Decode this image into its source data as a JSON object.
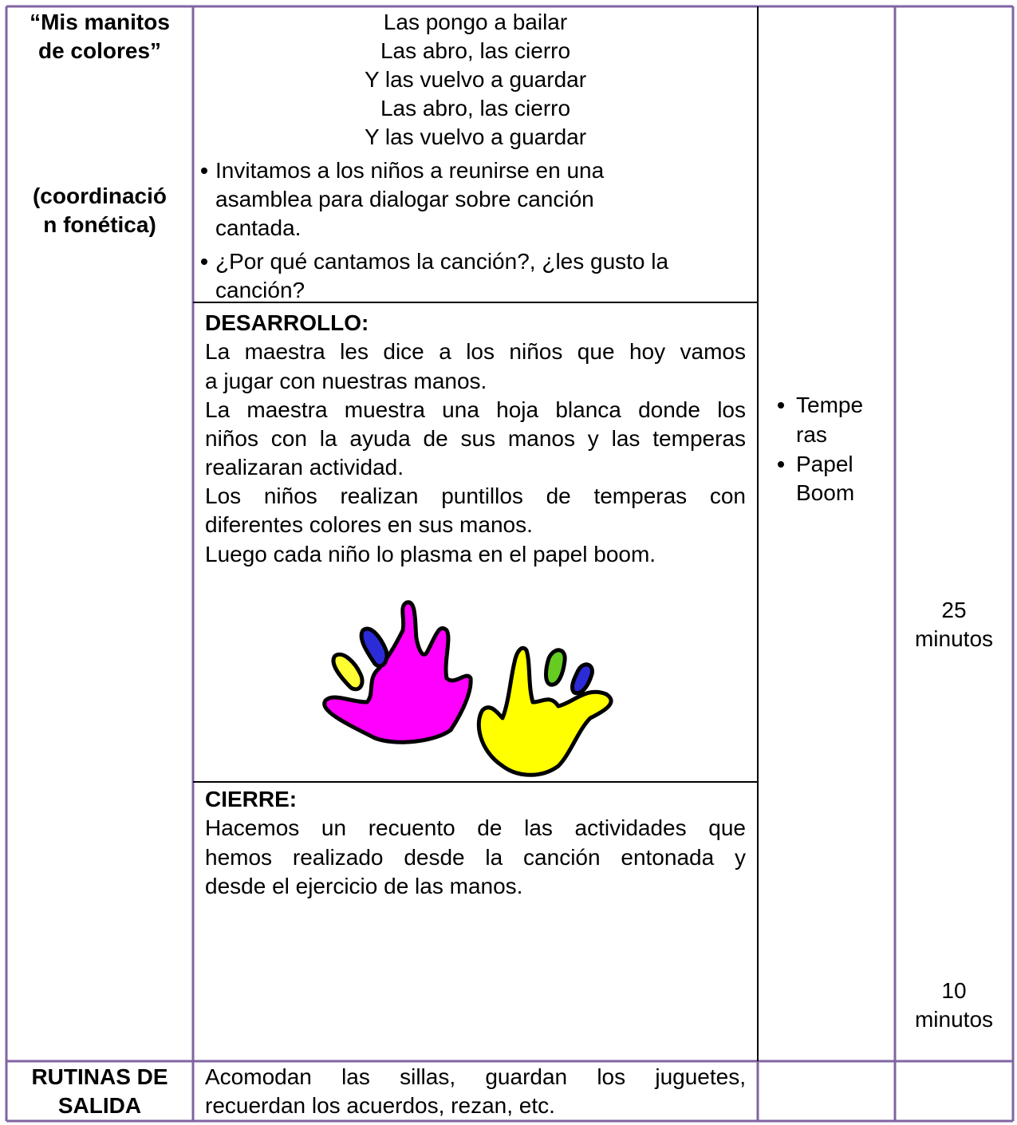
{
  "table": {
    "rows": [
      {
        "activity": [
          "“Mis manitos",
          "de colores”"
        ],
        "subtitle": [
          "(coordinació",
          "n fonética)"
        ],
        "song": [
          "Las pongo a bailar",
          "Las abro, las cierro",
          "Y las vuelvo a guardar",
          "Las abro, las cierro",
          "Y las vuelvo a guardar"
        ],
        "bullets": [
          [
            "Invitamos a los niños a reunirse en una",
            "asamblea para dialogar sobre canción",
            "cantada."
          ],
          [
            "¿Por qué cantamos la canción?, ¿les gusto la",
            "canción?"
          ]
        ],
        "development": {
          "heading": "DESARROLLO:",
          "lines": [
            "La maestra les dice a los niños que hoy vamos",
            "a jugar con nuestras manos.",
            "La maestra muestra una hoja blanca donde los",
            "niños con la ayuda de sus manos y las temperas",
            "realizaran actividad.",
            "Los niños realizan puntillos de temperas con",
            "diferentes colores en sus manos.",
            "Luego cada niño lo plasma en el papel boom."
          ]
        },
        "closing": {
          "heading": "CIERRE:",
          "lines": [
            "Hacemos un recuento de las actividades que",
            "hemos realizado desde la canción entonada y",
            "desde el ejercicio de las manos."
          ]
        },
        "materials": [
          [
            "Tempe",
            "ras"
          ],
          [
            "Papel",
            "Boom"
          ]
        ],
        "times": [
          [
            "25",
            "minutos"
          ],
          [
            "10",
            "minutos"
          ]
        ]
      },
      {
        "activity": [
          "RUTINAS DE",
          "SALIDA"
        ],
        "description": [
          "Acomodan las sillas, guardan los juguetes,",
          "recuerdan los acuerdos, rezan, etc."
        ]
      }
    ]
  }
}
